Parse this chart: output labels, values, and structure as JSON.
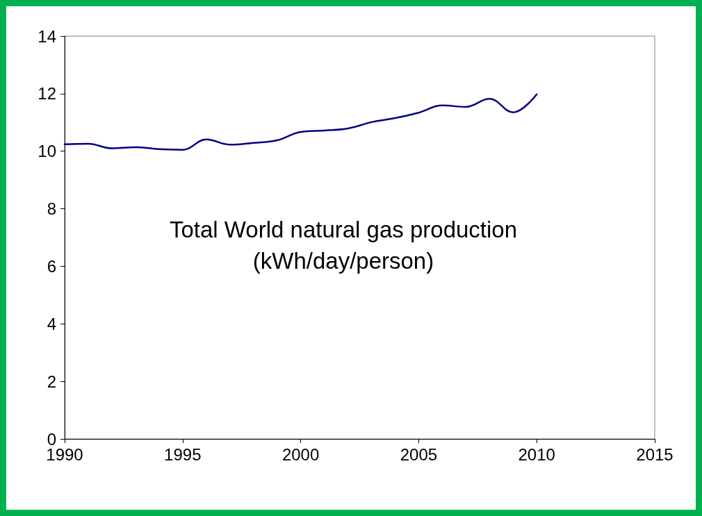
{
  "chart_data": {
    "type": "line",
    "title": "Total World natural gas production",
    "subtitle": "(kWh/day/person)",
    "x": [
      1990,
      1991,
      1992,
      1993,
      1994,
      1995,
      1996,
      1997,
      1998,
      1999,
      2000,
      2001,
      2002,
      2003,
      2004,
      2005,
      2006,
      2007,
      2008,
      2009,
      2010
    ],
    "series": [
      {
        "color": "#000080",
        "values": [
          10.24,
          10.26,
          10.1,
          10.14,
          10.07,
          10.05,
          10.41,
          10.23,
          10.29,
          10.38,
          10.67,
          10.72,
          10.79,
          11.01,
          11.15,
          11.34,
          11.59,
          11.54,
          11.82,
          11.35,
          11.98
        ]
      }
    ],
    "xlim": [
      1990,
      2015
    ],
    "xticks": [
      1990,
      1995,
      2000,
      2005,
      2010,
      2015
    ],
    "ylim": [
      0,
      14
    ],
    "yticks": [
      0,
      2,
      4,
      6,
      8,
      10,
      12,
      14
    ],
    "marker": "none",
    "line_style": "solid"
  }
}
